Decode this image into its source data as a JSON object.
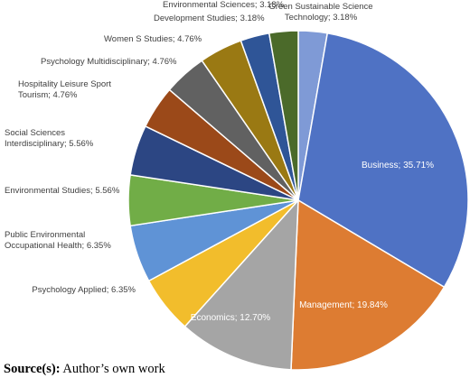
{
  "chart_data": {
    "type": "pie",
    "values": [
      3.18,
      35.71,
      19.84,
      12.7,
      6.35,
      6.35,
      5.56,
      5.56,
      4.76,
      4.76,
      4.76,
      3.18,
      3.18
    ],
    "value_labels": [
      "Green Sustainable Science Technology; 3.18%",
      "Business; 35.71%",
      "Management; 19.84%",
      "Economics; 12.70%",
      "Psychology Applied; 6.35%",
      "Public Environmental Occupational Health; 6.35%",
      "Environmental Studies; 5.56%",
      "Social Sciences Interdisciplinary; 5.56%",
      "Hospitality Leisure Sport Tourism; 4.76%",
      "Psychology Multidisciplinary; 4.76%",
      "Women S Studies; 4.76%",
      "Development Studies; 3.18%",
      "Environmental Sciences; 3.18%"
    ],
    "colors": [
      "#7f9ad6",
      "#4f72c4",
      "#dd7c32",
      "#a5a5a5",
      "#f2bd2c",
      "#5f93d6",
      "#71ad47",
      "#2c4683",
      "#9b4919",
      "#616161",
      "#9a7913",
      "#2f5597",
      "#4b6a2a"
    ],
    "source_label": "Source(s):",
    "source_text": "Author’s own work"
  }
}
